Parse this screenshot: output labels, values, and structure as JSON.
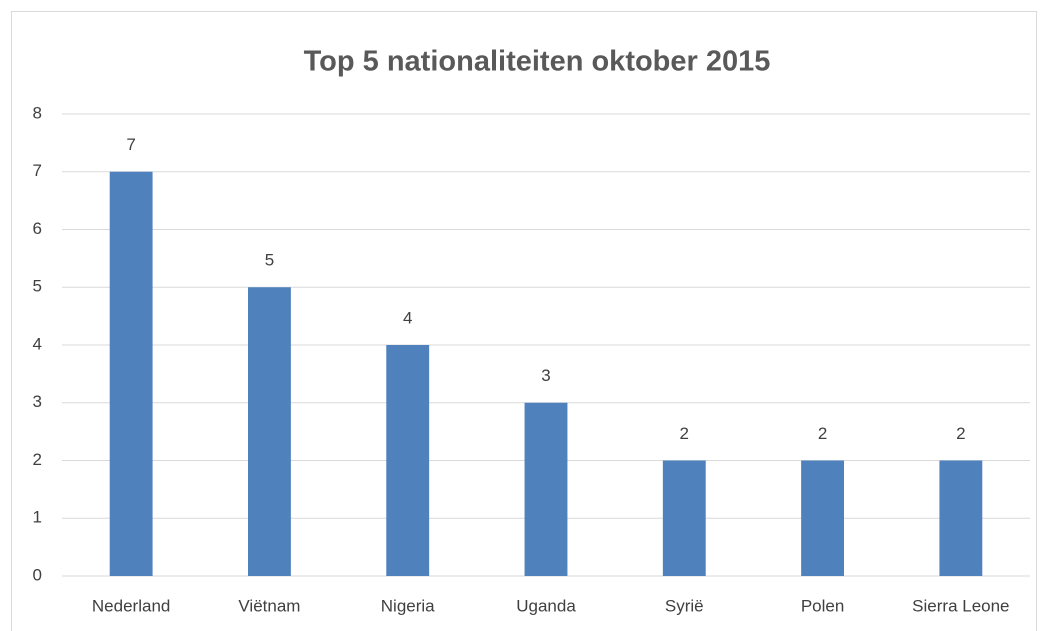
{
  "chart_data": {
    "type": "bar",
    "title": "Top 5 nationaliteiten oktober 2015",
    "categories": [
      "Nederland",
      "Viëtnam",
      "Nigeria",
      "Uganda",
      "Syrië",
      "Polen",
      "Sierra Leone"
    ],
    "values": [
      7,
      5,
      4,
      3,
      2,
      2,
      2
    ],
    "color": "#4f81bd",
    "ylim": [
      0,
      8
    ],
    "yticks": [
      0,
      1,
      2,
      3,
      4,
      5,
      6,
      7,
      8
    ],
    "grid": true,
    "data_labels": true
  }
}
